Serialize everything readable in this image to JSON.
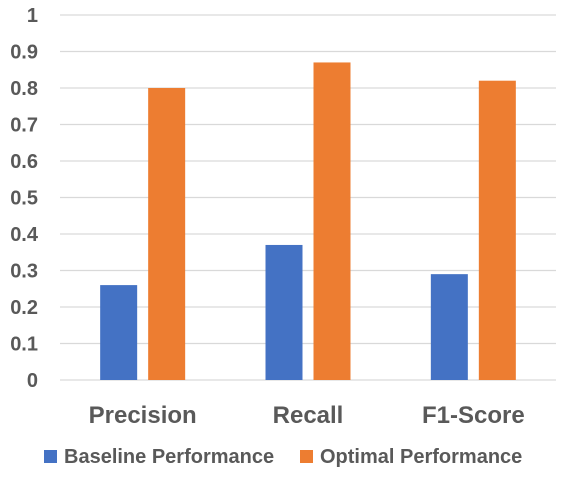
{
  "chart_data": {
    "type": "bar",
    "title": "",
    "xlabel": "",
    "ylabel": "",
    "categories": [
      "Precision",
      "Recall",
      "F1-Score"
    ],
    "series": [
      {
        "name": "Baseline Performance",
        "values": [
          0.26,
          0.37,
          0.29
        ],
        "color": "#4472C4"
      },
      {
        "name": "Optimal Performance",
        "values": [
          0.8,
          0.87,
          0.82
        ],
        "color": "#ED7D31"
      }
    ],
    "ylim": [
      0,
      1
    ],
    "yticks": [
      "0",
      "0.1",
      "0.2",
      "0.3",
      "0.4",
      "0.5",
      "0.6",
      "0.7",
      "0.8",
      "0.9",
      "1"
    ],
    "grid": true,
    "legend_position": "bottom"
  },
  "colors": {
    "grid": "#D9D9D9",
    "text": "#595959"
  }
}
